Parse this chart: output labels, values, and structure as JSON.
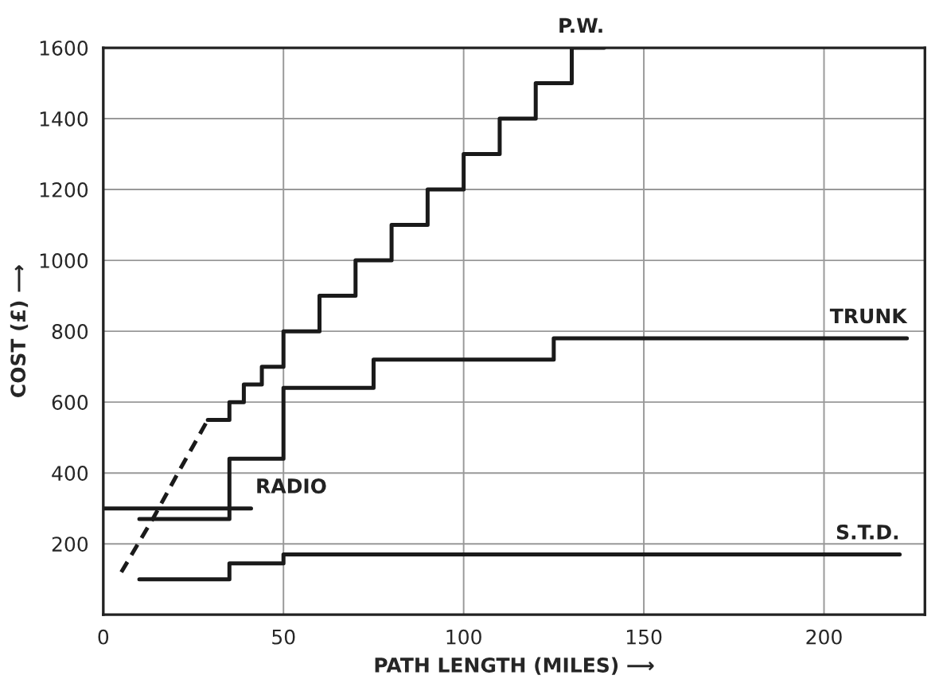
{
  "chart_data": {
    "type": "step",
    "xlabel": "PATH LENGTH (MILES) ⟶",
    "ylabel": "COST (£) ⟶",
    "xlim": [
      0,
      228
    ],
    "ylim": [
      0,
      1600
    ],
    "xticks": [
      0,
      50,
      100,
      150,
      200
    ],
    "yticks": [
      200,
      400,
      600,
      800,
      1000,
      1200,
      1400,
      1600
    ],
    "grid": true,
    "legend": false,
    "series": [
      {
        "name": "P.W.",
        "color": "#1a1a1a",
        "x": [
          29,
          35,
          39,
          44,
          50,
          60,
          70,
          80,
          90,
          100,
          110,
          120,
          130,
          139
        ],
        "values": [
          550,
          600,
          650,
          700,
          800,
          900,
          1000,
          1100,
          1200,
          1300,
          1400,
          1500,
          1600,
          1600
        ]
      },
      {
        "color": "#1a1a1a",
        "type": "line",
        "line_style": "dashed",
        "x": [
          5,
          14,
          21,
          29
        ],
        "values": [
          120,
          275,
          405,
          550
        ]
      },
      {
        "name": "TRUNK",
        "color": "#1a1a1a",
        "x": [
          10,
          35,
          50,
          75,
          125,
          223
        ],
        "values": [
          270,
          440,
          640,
          720,
          780,
          780
        ]
      },
      {
        "name": "RADIO",
        "color": "#1a1a1a",
        "x": [
          0,
          41
        ],
        "values": [
          300,
          300
        ]
      },
      {
        "name": "S.T.D.",
        "color": "#1a1a1a",
        "x": [
          10,
          35,
          50,
          221
        ],
        "values": [
          100,
          145,
          170,
          170
        ]
      }
    ]
  }
}
